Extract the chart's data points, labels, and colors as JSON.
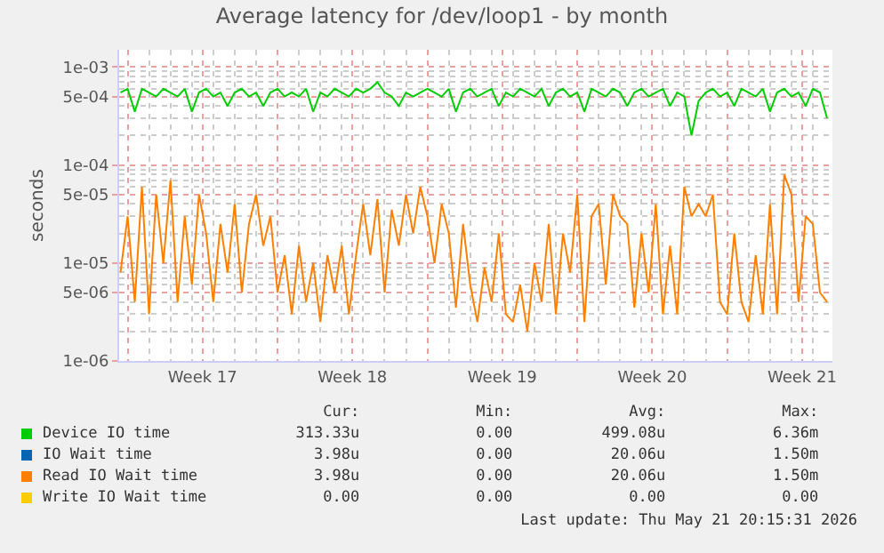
{
  "chart_data": {
    "type": "line",
    "title": "Average latency for /dev/loop1 - by month",
    "ylabel": "seconds",
    "log": true,
    "grid": true,
    "legend": "bottom",
    "marker": "none",
    "line_style": "solid",
    "xlim": [
      "2026-04-18T14:30",
      "2026-05-21T22:00"
    ],
    "xticks": [
      {
        "value": "2026-04-19",
        "label": null
      },
      {
        "value": "2026-04-22T12:00",
        "label": "Week 17"
      },
      {
        "value": "2026-04-26",
        "label": null
      },
      {
        "value": "2026-04-29T12:00",
        "label": "Week 18"
      },
      {
        "value": "2026-05-03",
        "label": null
      },
      {
        "value": "2026-05-06T12:00",
        "label": "Week 19"
      },
      {
        "value": "2026-05-10",
        "label": null
      },
      {
        "value": "2026-05-13T12:00",
        "label": "Week 20"
      },
      {
        "value": "2026-05-17",
        "label": null
      },
      {
        "value": "2026-05-20T12:00",
        "label": "Week 21"
      }
    ],
    "ylim": [
      1e-06,
      0.0015
    ],
    "yticks": [
      {
        "value": 1e-06,
        "label": "1e-06"
      },
      {
        "value": 5e-06,
        "label": "5e-06"
      },
      {
        "value": 1e-05,
        "label": "1e-05"
      },
      {
        "value": 5e-05,
        "label": "5e-05"
      },
      {
        "value": 0.0001,
        "label": "1e-04"
      },
      {
        "value": 0.0005,
        "label": "5e-04"
      },
      {
        "value": 0.001,
        "label": "1e-03"
      }
    ],
    "x": [
      "2026-04-18T16:00",
      "2026-04-19T00:00",
      "2026-04-19T08:00",
      "2026-04-19T16:00",
      "2026-04-20T00:00",
      "2026-04-20T08:00",
      "2026-04-20T16:00",
      "2026-04-21T00:00",
      "2026-04-21T08:00",
      "2026-04-21T16:00",
      "2026-04-22T00:00",
      "2026-04-22T08:00",
      "2026-04-22T16:00",
      "2026-04-23T00:00",
      "2026-04-23T08:00",
      "2026-04-23T16:00",
      "2026-04-24T00:00",
      "2026-04-24T08:00",
      "2026-04-24T16:00",
      "2026-04-25T00:00",
      "2026-04-25T08:00",
      "2026-04-25T16:00",
      "2026-04-26T00:00",
      "2026-04-26T08:00",
      "2026-04-26T16:00",
      "2026-04-27T00:00",
      "2026-04-27T08:00",
      "2026-04-27T16:00",
      "2026-04-28T00:00",
      "2026-04-28T08:00",
      "2026-04-28T16:00",
      "2026-04-29T00:00",
      "2026-04-29T08:00",
      "2026-04-29T16:00",
      "2026-04-30T00:00",
      "2026-04-30T08:00",
      "2026-04-30T16:00",
      "2026-05-01T00:00",
      "2026-05-01T08:00",
      "2026-05-01T16:00",
      "2026-05-02T00:00",
      "2026-05-02T08:00",
      "2026-05-02T16:00",
      "2026-05-03T00:00",
      "2026-05-03T08:00",
      "2026-05-03T16:00",
      "2026-05-04T00:00",
      "2026-05-04T08:00",
      "2026-05-04T16:00",
      "2026-05-05T00:00",
      "2026-05-05T08:00",
      "2026-05-05T16:00",
      "2026-05-06T00:00",
      "2026-05-06T08:00",
      "2026-05-06T16:00",
      "2026-05-07T00:00",
      "2026-05-07T08:00",
      "2026-05-07T16:00",
      "2026-05-08T00:00",
      "2026-05-08T08:00",
      "2026-05-08T16:00",
      "2026-05-09T00:00",
      "2026-05-09T08:00",
      "2026-05-09T16:00",
      "2026-05-10T00:00",
      "2026-05-10T08:00",
      "2026-05-10T16:00",
      "2026-05-11T00:00",
      "2026-05-11T08:00",
      "2026-05-11T16:00",
      "2026-05-12T00:00",
      "2026-05-12T08:00",
      "2026-05-12T16:00",
      "2026-05-13T00:00",
      "2026-05-13T08:00",
      "2026-05-13T16:00",
      "2026-05-14T00:00",
      "2026-05-14T08:00",
      "2026-05-14T16:00",
      "2026-05-15T00:00",
      "2026-05-15T08:00",
      "2026-05-15T16:00",
      "2026-05-16T00:00",
      "2026-05-16T08:00",
      "2026-05-16T16:00",
      "2026-05-17T00:00",
      "2026-05-17T08:00",
      "2026-05-17T16:00",
      "2026-05-18T00:00",
      "2026-05-18T08:00",
      "2026-05-18T16:00",
      "2026-05-19T00:00",
      "2026-05-19T08:00",
      "2026-05-19T16:00",
      "2026-05-20T00:00",
      "2026-05-20T08:00",
      "2026-05-20T16:00",
      "2026-05-21T00:00",
      "2026-05-21T08:00",
      "2026-05-21T16:00"
    ],
    "series": [
      {
        "name": "Device IO time",
        "color": "#00cc00",
        "values": [
          0.00055,
          0.0006,
          0.00035,
          0.0006,
          0.00055,
          0.0005,
          0.0006,
          0.00055,
          0.0005,
          0.0006,
          0.00035,
          0.00055,
          0.0006,
          0.0005,
          0.00055,
          0.0004,
          0.00055,
          0.0006,
          0.0005,
          0.00055,
          0.0004,
          0.00055,
          0.0006,
          0.0005,
          0.00055,
          0.0005,
          0.0006,
          0.00035,
          0.00055,
          0.0005,
          0.0006,
          0.00055,
          0.0005,
          0.0006,
          0.00055,
          0.0006,
          0.0007,
          0.00055,
          0.0005,
          0.0004,
          0.00055,
          0.0005,
          0.00055,
          0.0006,
          0.00055,
          0.0005,
          0.0006,
          0.00035,
          0.00055,
          0.0006,
          0.0005,
          0.00055,
          0.0006,
          0.0004,
          0.00055,
          0.0005,
          0.0006,
          0.00055,
          0.0005,
          0.0006,
          0.0004,
          0.00055,
          0.0006,
          0.0005,
          0.00055,
          0.00035,
          0.0006,
          0.00055,
          0.0005,
          0.0006,
          0.00055,
          0.0004,
          0.00055,
          0.0006,
          0.0005,
          0.00055,
          0.0006,
          0.0004,
          0.00055,
          0.0005,
          0.0002,
          0.00045,
          0.00055,
          0.0006,
          0.0005,
          0.00055,
          0.0004,
          0.0006,
          0.00055,
          0.0005,
          0.0006,
          0.00035,
          0.00055,
          0.0006,
          0.0005,
          0.00055,
          0.0004,
          0.0006,
          0.00055,
          0.0003
        ]
      },
      {
        "name": "IO Wait time",
        "color": "#0066b3",
        "values": [
          null,
          null,
          null,
          null,
          null,
          null,
          null,
          null,
          null,
          null,
          null,
          null,
          null,
          null,
          null,
          null,
          null,
          null,
          null,
          null,
          null,
          null,
          null,
          null,
          null,
          null,
          null,
          null,
          null,
          null,
          null,
          null,
          null,
          null,
          null,
          null,
          null,
          null,
          null,
          null,
          null,
          null,
          null,
          null,
          null,
          null,
          null,
          null,
          null,
          null,
          null,
          null,
          null,
          null,
          null,
          null,
          null,
          null,
          null,
          null,
          null,
          null,
          null,
          null,
          null,
          null,
          null,
          null,
          null,
          null,
          null,
          null,
          null,
          null,
          null,
          null,
          null,
          null,
          null,
          null,
          null,
          null,
          null,
          null,
          null,
          null,
          null,
          null,
          null,
          null,
          null,
          null,
          null,
          null,
          null,
          null,
          null,
          null,
          null,
          null
        ]
      },
      {
        "name": "Read IO Wait time",
        "color": "#ff8000",
        "values": [
          8e-06,
          3e-05,
          4e-06,
          6e-05,
          3e-06,
          5e-05,
          1e-05,
          7e-05,
          4e-06,
          3e-05,
          6e-06,
          5e-05,
          2e-05,
          4e-06,
          2.5e-05,
          8e-06,
          4e-05,
          5e-06,
          2.5e-05,
          5e-05,
          1.5e-05,
          3e-05,
          5e-06,
          1.2e-05,
          3e-06,
          1.5e-05,
          4e-06,
          1e-05,
          2.5e-06,
          1.2e-05,
          5e-06,
          1.5e-05,
          3e-06,
          1.2e-05,
          4e-05,
          1.2e-05,
          4.5e-05,
          5e-06,
          3.5e-05,
          1.5e-05,
          5e-05,
          2e-05,
          6e-05,
          3e-05,
          1e-05,
          4e-05,
          2e-05,
          3.5e-06,
          2.5e-05,
          6e-06,
          2.5e-06,
          9e-06,
          4e-06,
          2e-05,
          3e-06,
          2.5e-06,
          6e-06,
          2e-06,
          1e-05,
          4e-06,
          2.5e-05,
          3e-06,
          2e-05,
          8e-06,
          5e-05,
          2.5e-06,
          3e-05,
          4e-05,
          6e-06,
          5e-05,
          3e-05,
          2.5e-05,
          3.5e-06,
          2e-05,
          5e-06,
          4e-05,
          3e-06,
          1.5e-05,
          3e-06,
          6e-05,
          3e-05,
          4e-05,
          3e-05,
          5e-05,
          4e-06,
          3e-06,
          2e-05,
          4e-06,
          2.5e-06,
          1.2e-05,
          3e-06,
          4e-05,
          3e-06,
          8e-05,
          5e-05,
          4e-06,
          3e-05,
          2.5e-05,
          5e-06,
          4e-06
        ]
      },
      {
        "name": "Write IO Wait time",
        "color": "#ffcc00",
        "values": [
          null,
          null,
          null,
          null,
          null,
          null,
          null,
          null,
          null,
          null,
          null,
          null,
          null,
          null,
          null,
          null,
          null,
          null,
          null,
          null,
          null,
          null,
          null,
          null,
          null,
          null,
          null,
          null,
          null,
          null,
          null,
          null,
          null,
          null,
          null,
          null,
          null,
          null,
          null,
          null,
          null,
          null,
          null,
          null,
          null,
          null,
          null,
          null,
          null,
          null,
          null,
          null,
          null,
          null,
          null,
          null,
          null,
          null,
          null,
          null,
          null,
          null,
          null,
          null,
          null,
          null,
          null,
          null,
          null,
          null,
          null,
          null,
          null,
          null,
          null,
          null,
          null,
          null,
          null,
          null,
          null,
          null,
          null,
          null,
          null,
          null,
          null,
          null,
          null,
          null,
          null,
          null,
          null,
          null,
          null,
          null,
          null,
          null,
          null,
          null
        ]
      }
    ],
    "annotations": [
      "Cur:",
      "Min:",
      "Avg:",
      "Max:",
      "313.33u",
      "0.00",
      "499.08u",
      "6.36m",
      "3.98u",
      "0.00",
      "20.06u",
      "1.50m",
      "3.98u",
      "0.00",
      "20.06u",
      "1.50m",
      "0.00",
      "0.00",
      "0.00",
      "0.00",
      "Last update: Thu May 21 20:15:31 2026"
    ]
  }
}
